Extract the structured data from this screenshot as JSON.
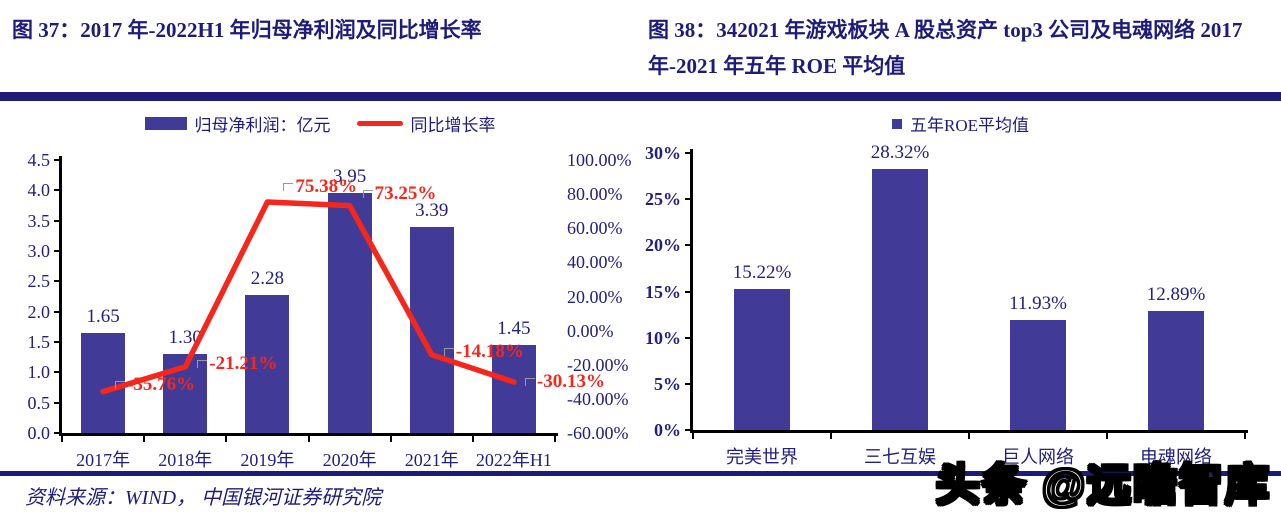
{
  "header": {
    "figure37_title": "图 37：2017 年-2022H1 年归母净利润及同比增长率",
    "figure38_title": "图 38：342021 年游戏板块 A 股总资产 top3 公司及电魂网络 2017 年-2021 年五年 ROE 平均值"
  },
  "footer": {
    "source_note": "资料来源：WIND，  中国银河证券研究院",
    "watermark": "头条 @远瞻智库"
  },
  "colors": {
    "navy": "#1e1b7b",
    "bar_fill": "#423a97",
    "line_red": "#f5271d",
    "axis_black": "#000000",
    "leader_gray": "#9a9a9a"
  },
  "chart_data": [
    {
      "id": "chart37",
      "type": "bar+line",
      "title": "2017年-2022H1年归母净利润及同比增长率",
      "categories": [
        "2017年",
        "2018年",
        "2019年",
        "2020年",
        "2021年",
        "2022年H1"
      ],
      "series": [
        {
          "name": "归母净利润：亿元",
          "type": "bar",
          "axis": "left",
          "values": [
            1.65,
            1.3,
            2.28,
            3.95,
            3.39,
            1.45
          ],
          "labels": [
            "1.65",
            "1.30",
            "2.28",
            "3.95",
            "3.39",
            "1.45"
          ]
        },
        {
          "name": "同比增长率",
          "type": "line",
          "axis": "right",
          "values": [
            -35.76,
            -21.21,
            75.38,
            73.25,
            -14.18,
            -30.13
          ],
          "labels": [
            "-35.76%",
            "-21.21%",
            "75.38%",
            "73.25%",
            "-14.18%",
            "-30.13%"
          ]
        }
      ],
      "left_axis": {
        "min": 0,
        "max": 4.5,
        "ticks": [
          "0.0",
          "0.5",
          "1.0",
          "1.5",
          "2.0",
          "2.5",
          "3.0",
          "3.5",
          "4.0",
          "4.5"
        ]
      },
      "right_axis": {
        "min": -60,
        "max": 100,
        "ticks": [
          "-60.00%",
          "-40.00%",
          "-20.00%",
          "0.00%",
          "20.00%",
          "40.00%",
          "60.00%",
          "80.00%",
          "100.00%"
        ]
      },
      "legend_position": "top",
      "grid": false
    },
    {
      "id": "chart38",
      "type": "bar",
      "legend": "五年ROE平均值",
      "categories": [
        "完美世界",
        "三七互娱",
        "巨人网络",
        "电魂网络"
      ],
      "values": [
        15.22,
        28.32,
        11.93,
        12.89
      ],
      "labels": [
        "15.22%",
        "28.32%",
        "11.93%",
        "12.89%"
      ],
      "left_axis": {
        "min": 0,
        "max": 30,
        "ticks": [
          "0%",
          "5%",
          "10%",
          "15%",
          "20%",
          "25%",
          "30%"
        ]
      },
      "legend_position": "top",
      "grid": false
    }
  ]
}
